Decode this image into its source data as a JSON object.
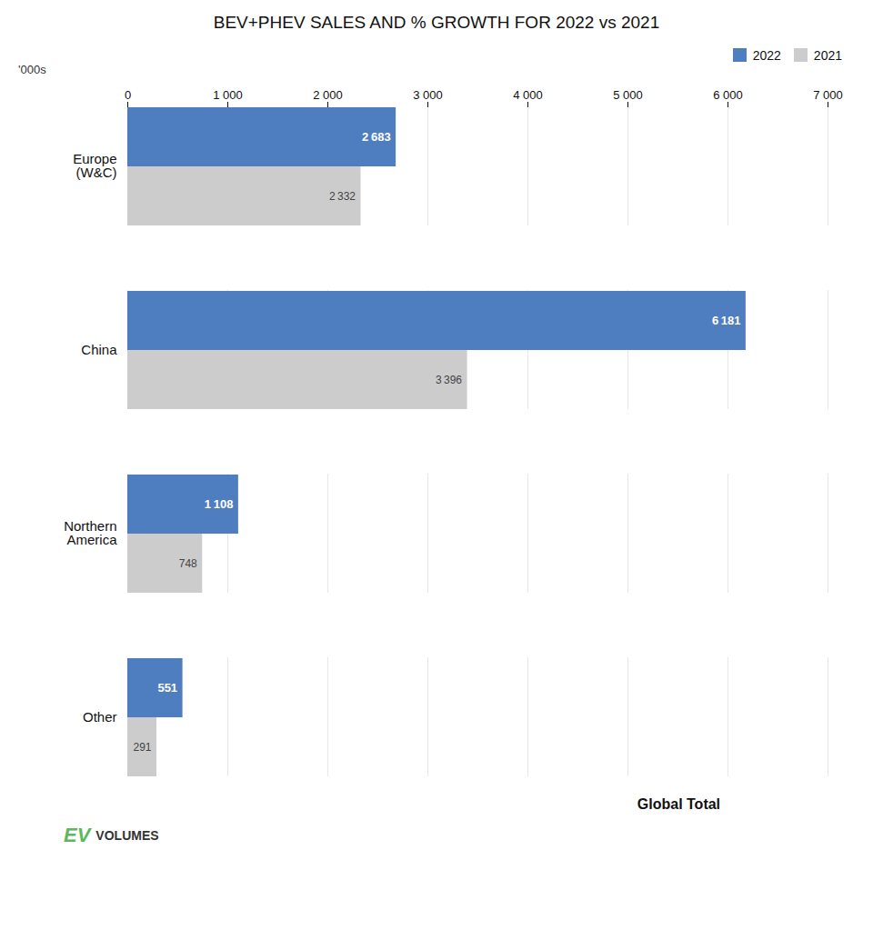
{
  "chart_data": {
    "type": "bar",
    "orientation": "horizontal",
    "title": "BEV+PHEV SALES AND % GROWTH FOR 2022 vs 2021",
    "xlabel": "'000s",
    "categories": [
      "Europe\n(W&C)",
      "China",
      "Northern\nAmerica",
      "Other"
    ],
    "series": [
      {
        "name": "2022",
        "color": "#4F7EC0",
        "values": [
          2683,
          6181,
          1108,
          551
        ],
        "value_labels": [
          "2 683",
          "6 181",
          "1 108",
          "551"
        ]
      },
      {
        "name": "2021",
        "color": "#CCCCCC",
        "values": [
          2332,
          3396,
          748,
          291
        ],
        "value_labels": [
          "2 332",
          "3 396",
          "748",
          "291"
        ]
      }
    ],
    "xlim": [
      0,
      7000
    ],
    "xticks": [
      0,
      {
        "value": 1000,
        "label": "1 000"
      },
      {
        "value": 2000,
        "label": "2 000"
      },
      {
        "value": 3000,
        "label": "3 000"
      },
      {
        "value": 4000,
        "label": "4 000"
      },
      {
        "value": 5000,
        "label": "5 000"
      },
      {
        "value": 6000,
        "label": "6 000"
      },
      {
        "value": 7000,
        "label": "7 000"
      }
    ],
    "grid": true,
    "legend": "right",
    "data_labels": true,
    "annotations": [
      {
        "text": "Global Total"
      },
      {
        "text": "EV",
        "color": "#5CB85C"
      },
      {
        "text": "VOLUMES"
      }
    ]
  }
}
